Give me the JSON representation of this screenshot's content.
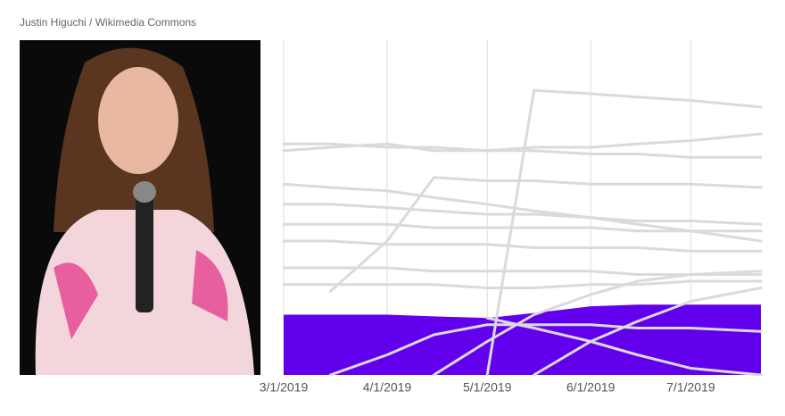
{
  "credit": "Justin Higuchi / Wikimedia Commons",
  "chart_data": {
    "type": "line",
    "x": [
      "3/1/2019",
      "3/15/2019",
      "4/1/2019",
      "4/15/2019",
      "5/1/2019",
      "5/15/2019",
      "6/1/2019",
      "6/15/2019",
      "7/1/2019",
      "7/22/2019"
    ],
    "xlim": [
      "3/1/2019",
      "7/22/2019"
    ],
    "xticks": [
      "3/1/2019",
      "4/1/2019",
      "5/1/2019",
      "6/1/2019",
      "7/1/2019"
    ],
    "ylim": [
      0,
      100
    ],
    "grid": true,
    "series": [
      {
        "color": "#6200ee",
        "area": true,
        "values": [
          18,
          18,
          18,
          17.5,
          17,
          18.5,
          20.5,
          21,
          21,
          21
        ]
      },
      {
        "color": "#dadada",
        "values": [
          null,
          null,
          null,
          null,
          0,
          85,
          84,
          83,
          82,
          80
        ]
      },
      {
        "color": "#dadada",
        "values": [
          67,
          68,
          69,
          67,
          67,
          68,
          68,
          69,
          70,
          72
        ]
      },
      {
        "color": "#dadada",
        "values": [
          69,
          69,
          68,
          68,
          67,
          67,
          66,
          66,
          65,
          65
        ]
      },
      {
        "color": "#dadada",
        "values": [
          57,
          56,
          55,
          53,
          51,
          49,
          47,
          45,
          43,
          40
        ]
      },
      {
        "color": "#dadada",
        "values": [
          null,
          25,
          40,
          59,
          58,
          58,
          57,
          57,
          57,
          56
        ]
      },
      {
        "color": "#dadada",
        "values": [
          51,
          51,
          50,
          49,
          48,
          48,
          47,
          46,
          46,
          45
        ]
      },
      {
        "color": "#dadada",
        "values": [
          45,
          45,
          45,
          44,
          44,
          44,
          44,
          43,
          43,
          43
        ]
      },
      {
        "color": "#dadada",
        "values": [
          40,
          40,
          39,
          39,
          39,
          38,
          38,
          38,
          37,
          37
        ]
      },
      {
        "color": "#dadada",
        "values": [
          32,
          32,
          32,
          31,
          31,
          31,
          31,
          30,
          30,
          30
        ]
      },
      {
        "color": "#dadada",
        "values": [
          27,
          27,
          27,
          27,
          26,
          26,
          27,
          27,
          28,
          28
        ]
      },
      {
        "color": "#dadada",
        "values": [
          null,
          null,
          null,
          0,
          10,
          18,
          24,
          28,
          30,
          31
        ]
      },
      {
        "color": "#dadada",
        "values": [
          null,
          null,
          null,
          null,
          17,
          14,
          10,
          6,
          2,
          0
        ]
      },
      {
        "color": "#dadada",
        "values": [
          null,
          null,
          null,
          null,
          null,
          0,
          10,
          16,
          22,
          26
        ]
      },
      {
        "color": "#dadada",
        "values": [
          null,
          0,
          6,
          12,
          15,
          15,
          15,
          14,
          14,
          13
        ]
      }
    ]
  }
}
